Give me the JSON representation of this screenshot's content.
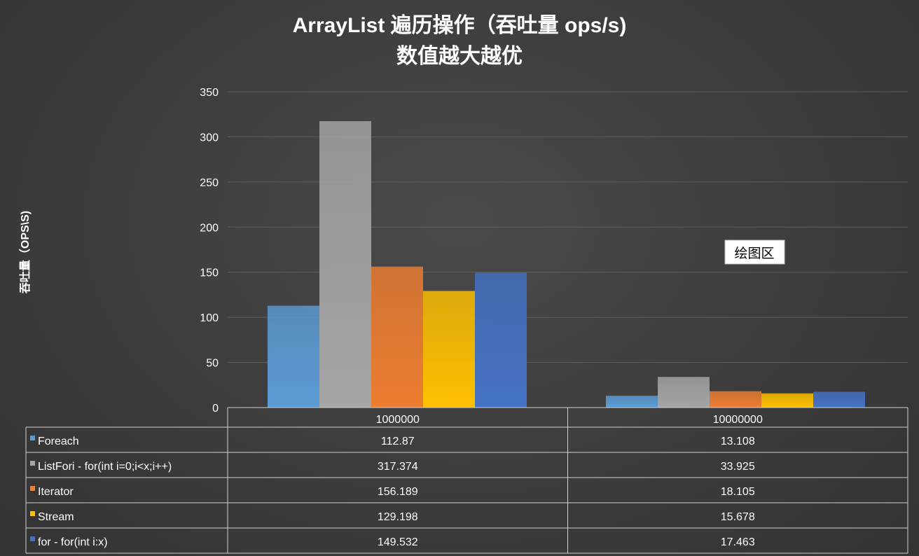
{
  "chart_data": {
    "type": "bar",
    "title_lines": [
      "ArrayList 遍历操作（吞吐量 ops/s)",
      "数值越大越优"
    ],
    "ylabel": "吞吐量（OPS\\S)",
    "xlabel": "",
    "ylim": [
      0,
      350
    ],
    "yticks": [
      "0",
      "50",
      "100",
      "150",
      "200",
      "250",
      "300",
      "350"
    ],
    "grid": true,
    "legend": "data-table",
    "categories": [
      "1000000",
      "10000000"
    ],
    "series": [
      {
        "name": "Foreach",
        "values": [
          112.87,
          13.108
        ],
        "labels": [
          "112.87",
          "13.108"
        ],
        "color": "#5b9bd5"
      },
      {
        "name": "ListFori - for(int i=0;i<x;i++)",
        "values": [
          317.374,
          33.925
        ],
        "labels": [
          "317.374",
          "33.925"
        ],
        "color": "#a5a5a5"
      },
      {
        "name": "Iterator",
        "values": [
          156.189,
          18.105
        ],
        "labels": [
          "156.189",
          "18.105"
        ],
        "color": "#ed7d31"
      },
      {
        "name": "Stream",
        "values": [
          129.198,
          15.678
        ],
        "labels": [
          "129.198",
          "15.678"
        ],
        "color": "#ffc000"
      },
      {
        "name": "for - for(int i:x)",
        "values": [
          149.532,
          17.463
        ],
        "labels": [
          "149.532",
          "17.463"
        ],
        "color": "#4472c4"
      }
    ],
    "annotation": "绘图区"
  }
}
